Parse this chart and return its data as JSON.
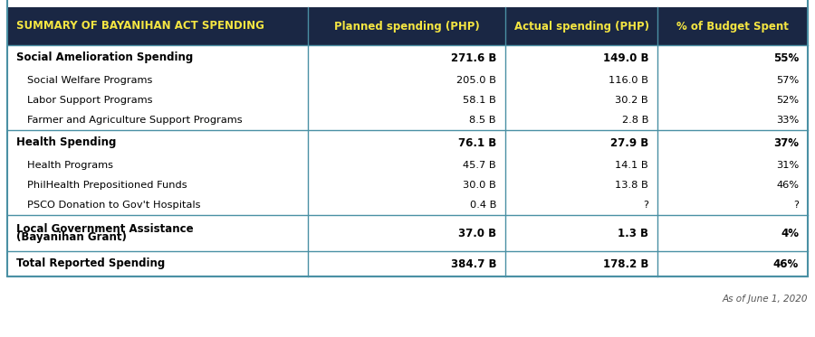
{
  "header": {
    "col0": "SUMMARY OF BAYANIHAN ACT SPENDING",
    "col1": "Planned spending (PHP)",
    "col2": "Actual spending (PHP)",
    "col3": "% of Budget Spent",
    "bg_color": "#1a2744",
    "text_color": "#f5e642"
  },
  "rows": [
    {
      "label": "Social Amelioration Spending",
      "bold": true,
      "indent": false,
      "col1": "271.6 B",
      "col2": "149.0 B",
      "col3": "55%",
      "section_start": true
    },
    {
      "label": "Social Welfare Programs",
      "bold": false,
      "indent": true,
      "col1": "205.0 B",
      "col2": "116.0 B",
      "col3": "57%",
      "section_start": false
    },
    {
      "label": "Labor Support Programs",
      "bold": false,
      "indent": true,
      "col1": "58.1 B",
      "col2": "30.2 B",
      "col3": "52%",
      "section_start": false
    },
    {
      "label": "Farmer and Agriculture Support Programs",
      "bold": false,
      "indent": true,
      "col1": "8.5 B",
      "col2": "2.8 B",
      "col3": "33%",
      "section_start": false
    },
    {
      "label": "Health Spending",
      "bold": true,
      "indent": false,
      "col1": "76.1 B",
      "col2": "27.9 B",
      "col3": "37%",
      "section_start": true
    },
    {
      "label": "Health Programs",
      "bold": false,
      "indent": true,
      "col1": "45.7 B",
      "col2": "14.1 B",
      "col3": "31%",
      "section_start": false
    },
    {
      "label": "PhilHealth Prepositioned Funds",
      "bold": false,
      "indent": true,
      "col1": "30.0 B",
      "col2": "13.8 B",
      "col3": "46%",
      "section_start": false
    },
    {
      "label": "PSCO Donation to Gov't Hospitals",
      "bold": false,
      "indent": true,
      "col1": "0.4 B",
      "col2": "?",
      "col3": "?",
      "section_start": false
    },
    {
      "label": "Local Government Assistance\n(Bayanihan Grant)",
      "bold": true,
      "indent": false,
      "col1": "37.0 B",
      "col2": "1.3 B",
      "col3": "4%",
      "section_start": true,
      "multiline": true
    },
    {
      "label": "Total Reported Spending",
      "bold": true,
      "indent": false,
      "col1": "384.7 B",
      "col2": "178.2 B",
      "col3": "46%",
      "section_start": true
    }
  ],
  "footer_text": "As of June 1, 2020",
  "border_color": "#4a90a4",
  "header_bg": "#1a2744",
  "header_text_color": "#f5e642",
  "row_bg": "#ffffff",
  "text_color": "#000000",
  "fig_width": 9.0,
  "fig_height": 3.73,
  "dpi": 100
}
